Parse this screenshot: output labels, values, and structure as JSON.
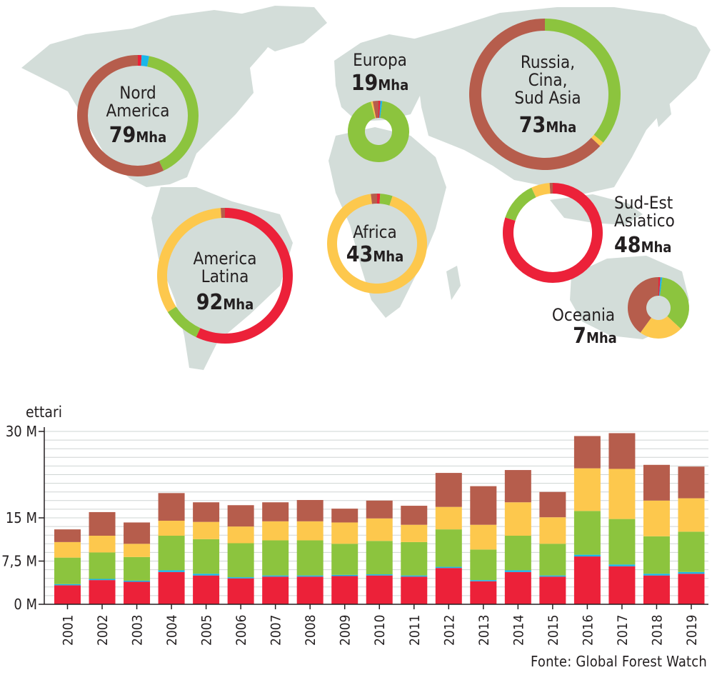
{
  "colors": {
    "map_land": "#d3ddd9",
    "rossa": "#ec2139",
    "blu": "#1ab6ea",
    "verde": "#8cc43e",
    "gialla": "#fdc84d",
    "marrone": "#b65d4c",
    "text": "#231f20"
  },
  "map": {
    "regions": [
      {
        "id": "nord-america",
        "lines": [
          "Nord",
          "America"
        ],
        "value": "79",
        "unit": "Mha",
        "segments": [
          0.01,
          0.02,
          0.4,
          0.0,
          0.57
        ]
      },
      {
        "id": "europa",
        "lines": [
          "Europa"
        ],
        "value": "19",
        "unit": "Mha",
        "segments": [
          0.01,
          0.01,
          0.94,
          0.01,
          0.03
        ]
      },
      {
        "id": "russia-cina",
        "lines": [
          "Russia,",
          "Cina,",
          "Sud Asia"
        ],
        "value": "73",
        "unit": "Mha",
        "segments": [
          0.0,
          0.0,
          0.36,
          0.01,
          0.63
        ]
      },
      {
        "id": "america-latina",
        "lines": [
          "America",
          "Latina"
        ],
        "value": "92",
        "unit": "Mha",
        "segments": [
          0.57,
          0.0,
          0.09,
          0.33,
          0.01
        ]
      },
      {
        "id": "africa",
        "lines": [
          "Africa"
        ],
        "value": "43",
        "unit": "Mha",
        "segments": [
          0.01,
          0.0,
          0.04,
          0.93,
          0.02
        ]
      },
      {
        "id": "sud-est-asiatico",
        "lines": [
          "Sud-Est",
          "Asiatico"
        ],
        "value": "48",
        "unit": "Mha",
        "segments": [
          0.8,
          0.0,
          0.13,
          0.06,
          0.01
        ]
      },
      {
        "id": "oceania",
        "lines": [
          "Oceania"
        ],
        "value": "7",
        "unit": "Mha",
        "segments": [
          0.01,
          0.01,
          0.35,
          0.23,
          0.4
        ]
      }
    ]
  },
  "chart_data": {
    "type": "bar",
    "stacked": true,
    "ylabel": "ettari",
    "ylim": [
      0,
      30
    ],
    "yticks": [
      "0 M",
      "7,5 M",
      "15 M",
      "30 M"
    ],
    "ytick_values": [
      0,
      7.5,
      15,
      30
    ],
    "categories": [
      "2001",
      "2002",
      "2003",
      "2004",
      "2005",
      "2006",
      "2007",
      "2008",
      "2009",
      "2010",
      "2011",
      "2012",
      "2013",
      "2014",
      "2015",
      "2016",
      "2017",
      "2018",
      "2019"
    ],
    "series": [
      {
        "name": "rossa",
        "color": "#ec2139",
        "values": [
          3.3,
          4.2,
          3.9,
          5.6,
          5.0,
          4.5,
          4.8,
          4.8,
          4.9,
          5.0,
          4.8,
          6.3,
          4.0,
          5.6,
          4.8,
          8.3,
          6.6,
          5.0,
          5.3
        ]
      },
      {
        "name": "blu",
        "color": "#1ab6ea",
        "values": [
          0.2,
          0.2,
          0.2,
          0.3,
          0.3,
          0.2,
          0.2,
          0.2,
          0.2,
          0.2,
          0.2,
          0.2,
          0.2,
          0.3,
          0.2,
          0.3,
          0.3,
          0.3,
          0.3
        ]
      },
      {
        "name": "verde",
        "color": "#8cc43e",
        "values": [
          4.6,
          4.6,
          4.1,
          6.0,
          6.0,
          5.9,
          6.1,
          6.1,
          5.4,
          5.8,
          5.8,
          6.5,
          5.3,
          6.0,
          5.5,
          7.6,
          7.9,
          6.5,
          7.0
        ]
      },
      {
        "name": "gialla",
        "color": "#fdc84d",
        "values": [
          2.7,
          2.9,
          2.3,
          2.6,
          3.0,
          2.9,
          3.3,
          3.3,
          3.7,
          3.9,
          3.0,
          3.9,
          4.3,
          5.8,
          4.6,
          7.4,
          8.7,
          6.2,
          5.8
        ]
      },
      {
        "name": "marrone",
        "color": "#b65d4c",
        "values": [
          2.2,
          4.1,
          3.7,
          4.8,
          3.4,
          3.7,
          3.3,
          3.7,
          2.4,
          3.1,
          3.3,
          5.9,
          6.7,
          5.6,
          4.4,
          5.6,
          6.2,
          6.2,
          5.5
        ]
      }
    ]
  },
  "source": "Fonte: Global Forest Watch"
}
